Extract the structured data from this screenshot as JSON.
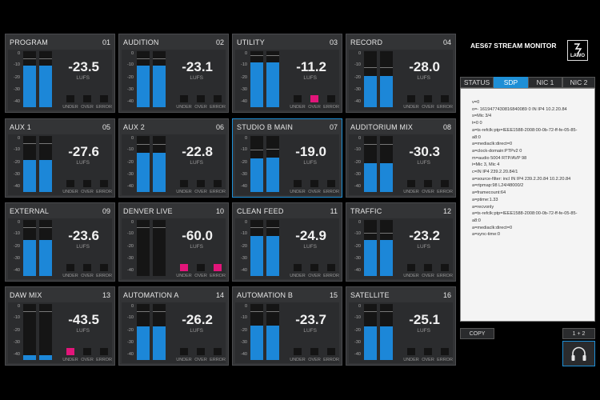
{
  "app": {
    "title": "AES67 STREAM MONITOR",
    "logo_text": "LAWO",
    "accent_color": "#1e8fd6",
    "alarm_color": "#e2157a"
  },
  "tabs": [
    {
      "label": "STATUS",
      "active": false
    },
    {
      "label": "SDP",
      "active": true
    },
    {
      "label": "NIC 1",
      "active": false
    },
    {
      "label": "NIC 2",
      "active": false
    }
  ],
  "scale_labels": [
    "0",
    "-10",
    "-20",
    "-30",
    "-40"
  ],
  "unit_label": "LUFS",
  "indicator_labels": [
    "UNDER",
    "OVER",
    "ERROR"
  ],
  "tiles": [
    {
      "name": "PROGRAM",
      "num": "01",
      "value": "-23.5",
      "level": [
        0.75,
        0.75
      ],
      "peak": [
        0.86,
        0.86
      ],
      "under": false,
      "over": false,
      "error": false,
      "selected": false
    },
    {
      "name": "AUDITION",
      "num": "02",
      "value": "-23.1",
      "level": [
        0.75,
        0.75
      ],
      "peak": [
        0.86,
        0.86
      ],
      "under": false,
      "over": false,
      "error": false,
      "selected": false
    },
    {
      "name": "UTILITY",
      "num": "03",
      "value": "-11.2",
      "level": [
        0.8,
        0.8
      ],
      "peak": [
        0.92,
        0.92
      ],
      "under": false,
      "over": true,
      "error": false,
      "selected": false
    },
    {
      "name": "RECORD",
      "num": "04",
      "value": "-28.0",
      "level": [
        0.56,
        0.56
      ],
      "peak": [
        0.7,
        0.7
      ],
      "under": false,
      "over": false,
      "error": false,
      "selected": false
    },
    {
      "name": "AUX 1",
      "num": "05",
      "value": "-27.6",
      "level": [
        0.57,
        0.57
      ],
      "peak": [
        0.86,
        0.86
      ],
      "under": false,
      "over": false,
      "error": false,
      "selected": false
    },
    {
      "name": "AUX 2",
      "num": "06",
      "value": "-22.8",
      "level": [
        0.7,
        0.7
      ],
      "peak": [
        0.84,
        0.84
      ],
      "under": false,
      "over": false,
      "error": false,
      "selected": false
    },
    {
      "name": "STUDIO B MAIN",
      "num": "07",
      "value": "-19.0",
      "level": [
        0.6,
        0.62
      ],
      "peak": [
        0.74,
        0.76
      ],
      "under": false,
      "over": false,
      "error": false,
      "selected": true
    },
    {
      "name": "AUDITORIUM MIX",
      "num": "08",
      "value": "-30.3",
      "level": [
        0.52,
        0.52
      ],
      "peak": [
        0.84,
        0.84
      ],
      "under": false,
      "over": false,
      "error": false,
      "selected": false
    },
    {
      "name": "EXTERNAL",
      "num": "09",
      "value": "-23.6",
      "level": [
        0.64,
        0.64
      ],
      "peak": [
        0.86,
        0.86
      ],
      "under": false,
      "over": false,
      "error": false,
      "selected": false
    },
    {
      "name": "DENVER LIVE",
      "num": "10",
      "value": "-60.0",
      "level": [
        0.0,
        0.0
      ],
      "peak": [
        0.86,
        0.86
      ],
      "under": true,
      "over": false,
      "error": true,
      "selected": false
    },
    {
      "name": "CLEAN FEED",
      "num": "11",
      "value": "-24.9",
      "level": [
        0.72,
        0.72
      ],
      "peak": [
        0.86,
        0.86
      ],
      "under": false,
      "over": false,
      "error": false,
      "selected": false
    },
    {
      "name": "TRAFFIC",
      "num": "12",
      "value": "-23.2",
      "level": [
        0.64,
        0.64
      ],
      "peak": [
        0.76,
        0.76
      ],
      "under": false,
      "over": false,
      "error": false,
      "selected": false
    },
    {
      "name": "DAW MIX",
      "num": "13",
      "value": "-43.5",
      "level": [
        0.08,
        0.08
      ],
      "peak": [
        0.86,
        0.86
      ],
      "under": true,
      "over": false,
      "error": false,
      "selected": false
    },
    {
      "name": "AUTOMATION A",
      "num": "14",
      "value": "-26.2",
      "level": [
        0.6,
        0.6
      ],
      "peak": [
        0.86,
        0.86
      ],
      "under": false,
      "over": false,
      "error": false,
      "selected": false
    },
    {
      "name": "AUTOMATION B",
      "num": "15",
      "value": "-23.7",
      "level": [
        0.62,
        0.62
      ],
      "peak": [
        0.86,
        0.86
      ],
      "under": false,
      "over": false,
      "error": false,
      "selected": false
    },
    {
      "name": "SATELLITE",
      "num": "16",
      "value": "-25.1",
      "level": [
        0.6,
        0.6
      ],
      "peak": [
        0.86,
        0.86
      ],
      "under": false,
      "over": false,
      "error": false,
      "selected": false
    }
  ],
  "sdp_lines": [
    "v=0",
    "o=- 1619477430816840089 0 IN IP4 10.2.20.84",
    "s=Mic 3/4",
    "t=0 0",
    "a=ts-refclk:ptp=IEEE1588-2008:00-0b-72-ff-fe-05-85-",
    "a8:0",
    "a=mediaclk:direct=0",
    "a=clock-domain:PTPv2 0",
    "m=audio 5004 RTP/AVP 98",
    "i=Mic 3, Mic 4",
    "c=IN IP4 239.2.20.84/1",
    "a=source-filter: incl IN IP4 239.2.20.84 10.2.20.84",
    "a=rtpmap:98 L24/48000/2",
    "a=framecount:64",
    "a=ptime:1.33",
    "a=recvonly",
    "a=ts-refclk:ptp=IEEE1588-2008:00-0b-72-ff-fe-05-85-",
    "a8:0",
    "a=mediaclk:direct=0",
    "a=sync-time:0"
  ],
  "buttons": {
    "copy": "COPY",
    "channels": "1 + 2",
    "headphones_icon": "headphones-icon"
  }
}
